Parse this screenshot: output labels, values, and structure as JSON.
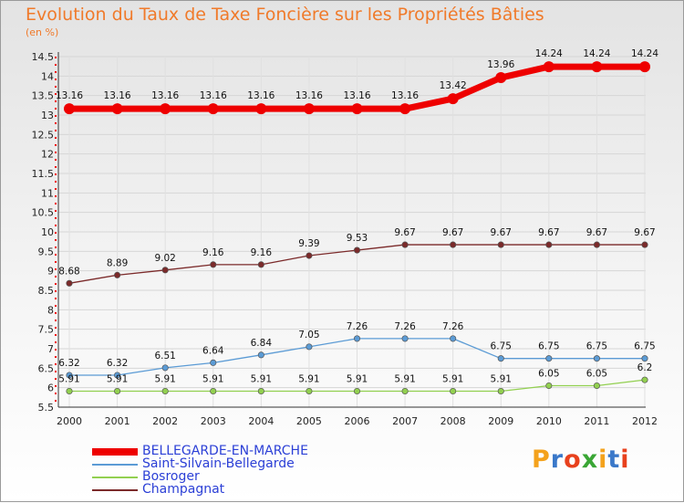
{
  "chart_data": {
    "type": "line",
    "title": "Evolution du Taux de Taxe Foncière sur les Propriétés Bâties",
    "ylabel": "(en %)",
    "xlabel": "",
    "x": [
      "2000",
      "2001",
      "2002",
      "2003",
      "2004",
      "2005",
      "2006",
      "2007",
      "2008",
      "2009",
      "2010",
      "2011",
      "2012"
    ],
    "ylim": [
      5.5,
      14.5
    ],
    "yticks": [
      "5.5",
      "6",
      "6.5",
      "7",
      "7.5",
      "8",
      "8.5",
      "9",
      "9.5",
      "10",
      "10.5",
      "11",
      "11.5",
      "12",
      "12.5",
      "13",
      "13.5",
      "14",
      "14.5"
    ],
    "series": [
      {
        "name": "BELLEGARDE-EN-MARCHE",
        "color": "#ee0000",
        "values": [
          13.16,
          13.16,
          13.16,
          13.16,
          13.16,
          13.16,
          13.16,
          13.16,
          13.42,
          13.96,
          14.24,
          14.24,
          14.24
        ],
        "labels": [
          "13.16",
          "13.16",
          "13.16",
          "13.16",
          "13.16",
          "13.16",
          "13.16",
          "13.16",
          "13.42",
          "13.96",
          "14.24",
          "14.24",
          "14.24"
        ]
      },
      {
        "name": "Saint-Silvain-Bellegarde",
        "color": "#5b9bd5",
        "values": [
          6.32,
          6.32,
          6.51,
          6.64,
          6.84,
          7.05,
          7.26,
          7.26,
          7.26,
          6.75,
          6.75,
          6.75,
          6.75
        ],
        "labels": [
          "6.32",
          "6.32",
          "6.51",
          "6.64",
          "6.84",
          "7.05",
          "7.26",
          "7.26",
          "7.26",
          "6.75",
          "6.75",
          "6.75",
          "6.75"
        ]
      },
      {
        "name": "Bosroger",
        "color": "#92d050",
        "values": [
          5.91,
          5.91,
          5.91,
          5.91,
          5.91,
          5.91,
          5.91,
          5.91,
          5.91,
          5.91,
          6.05,
          6.05,
          6.2
        ],
        "labels": [
          "5.91",
          "5.91",
          "5.91",
          "5.91",
          "5.91",
          "5.91",
          "5.91",
          "5.91",
          "5.91",
          "5.91",
          "6.05",
          "6.05",
          "6.2"
        ]
      },
      {
        "name": "Champagnat",
        "color": "#7b2a2a",
        "values": [
          8.68,
          8.89,
          9.02,
          9.16,
          9.16,
          9.39,
          9.53,
          9.67,
          9.67,
          9.67,
          9.67,
          9.67,
          9.67
        ],
        "labels": [
          "8.68",
          "8.89",
          "9.02",
          "9.16",
          "9.16",
          "9.39",
          "9.53",
          "9.67",
          "9.67",
          "9.67",
          "9.67",
          "9.67",
          "9.67"
        ]
      }
    ]
  },
  "legend": {
    "items": [
      "BELLEGARDE-EN-MARCHE",
      "Saint-Silvain-Bellegarde",
      "Bosroger",
      "Champagnat"
    ]
  },
  "logo": {
    "text": "Proxiti",
    "letters": [
      "P",
      "r",
      "o",
      "x",
      "i",
      "t",
      "i"
    ],
    "colors": [
      "#f4a21c",
      "#3a78c9",
      "#e8411d",
      "#3aa635",
      "#f4a21c",
      "#3a78c9",
      "#e8411d"
    ]
  }
}
